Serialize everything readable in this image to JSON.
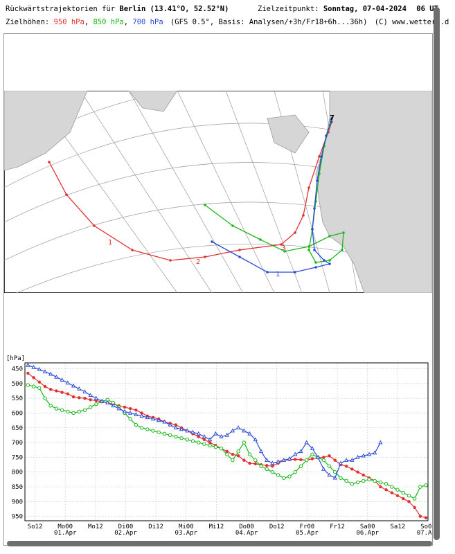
{
  "header": {
    "line1_prefix": "Rückwärtstrajektorien für",
    "city": "Berlin",
    "coords": "(13.41°O, 52.52°N)",
    "target_label": "Zielzeitpunkt:",
    "target_value": "Sonntag, 07-04-2024",
    "target_hour": "06 UT",
    "line2_prefix": "Zielhöhen:",
    "level_950": "950 hPa",
    "level_850": "850 hPa",
    "level_700": "700 hPa",
    "basis": "(GFS 0.5°, Basis: Analysen/+3h/Fr18+6h...36h)",
    "credit": "(C) www.wetter3.d"
  },
  "colors": {
    "red": "#e03030",
    "green": "#18b818",
    "blue": "#2a4ad8"
  },
  "map": {
    "day_markers": [
      "1",
      "2",
      "3",
      "7"
    ]
  },
  "chart_data": {
    "type": "line",
    "ylabel": "[hPa]",
    "y_ticks": [
      450,
      500,
      550,
      600,
      650,
      700,
      750,
      800,
      850,
      900,
      950
    ],
    "ylim": [
      430,
      965
    ],
    "xlim": [
      0,
      37
    ],
    "x_ticks": [
      {
        "label": "So12",
        "sub": "",
        "x": 1
      },
      {
        "label": "Mo00",
        "sub": "01.Apr",
        "x": 4
      },
      {
        "label": "Mo12",
        "sub": "",
        "x": 7
      },
      {
        "label": "Di00",
        "sub": "02.Apr",
        "x": 10
      },
      {
        "label": "Di12",
        "sub": "",
        "x": 13
      },
      {
        "label": "Mi00",
        "sub": "03.Apr",
        "x": 16
      },
      {
        "label": "Mi12",
        "sub": "",
        "x": 19
      },
      {
        "label": "Do00",
        "sub": "04.Apr",
        "x": 22
      },
      {
        "label": "Do12",
        "sub": "",
        "x": 25
      },
      {
        "label": "Fr00",
        "sub": "05.Apr",
        "x": 28
      },
      {
        "label": "Fr12",
        "sub": "",
        "x": 31
      },
      {
        "label": "Sa00",
        "sub": "06.Apr",
        "x": 34
      },
      {
        "label": "Sa12",
        "sub": "",
        "x": 37
      },
      {
        "label": "So00",
        "sub": "07.Apr",
        "x": 40
      }
    ],
    "series": [
      {
        "name": "950 hPa",
        "color": "#e03030",
        "values": [
          465,
          480,
          495,
          510,
          520,
          525,
          530,
          535,
          545,
          548,
          550,
          555,
          558,
          562,
          565,
          570,
          575,
          580,
          585,
          590,
          600,
          610,
          615,
          620,
          630,
          635,
          640,
          650,
          660,
          670,
          680,
          690,
          700,
          710,
          720,
          730,
          740,
          745,
          760,
          770,
          772,
          775,
          778,
          780,
          770,
          760,
          758,
          757,
          758,
          760,
          755,
          752,
          750,
          745,
          760,
          775,
          780,
          790,
          800,
          810,
          820,
          830,
          850,
          860,
          870,
          880,
          890,
          900,
          920,
          950,
          955
        ]
      },
      {
        "name": "850 hPa",
        "color": "#18b818",
        "values": [
          505,
          510,
          515,
          550,
          575,
          585,
          590,
          595,
          600,
          595,
          590,
          580,
          570,
          560,
          555,
          565,
          580,
          600,
          620,
          640,
          650,
          655,
          660,
          665,
          670,
          675,
          680,
          685,
          690,
          695,
          700,
          705,
          710,
          715,
          720,
          740,
          760,
          730,
          700,
          740,
          760,
          780,
          790,
          800,
          810,
          820,
          815,
          800,
          780,
          760,
          740,
          750,
          760,
          780,
          800,
          820,
          830,
          840,
          835,
          830,
          825,
          830,
          835,
          840,
          850,
          860,
          870,
          880,
          890,
          850,
          845
        ]
      },
      {
        "name": "700 hPa",
        "color": "#2a4ad8",
        "values": [
          438,
          445,
          452,
          460,
          468,
          478,
          488,
          498,
          508,
          518,
          528,
          540,
          550,
          560,
          565,
          575,
          585,
          595,
          600,
          605,
          610,
          615,
          620,
          625,
          630,
          640,
          650,
          655,
          660,
          665,
          670,
          680,
          690,
          670,
          680,
          675,
          660,
          650,
          660,
          670,
          690,
          730,
          760,
          770,
          765,
          760,
          755,
          740,
          730,
          700,
          720,
          750,
          790,
          810,
          820,
          770,
          760,
          760,
          750,
          745,
          740,
          735,
          700
        ]
      }
    ]
  }
}
